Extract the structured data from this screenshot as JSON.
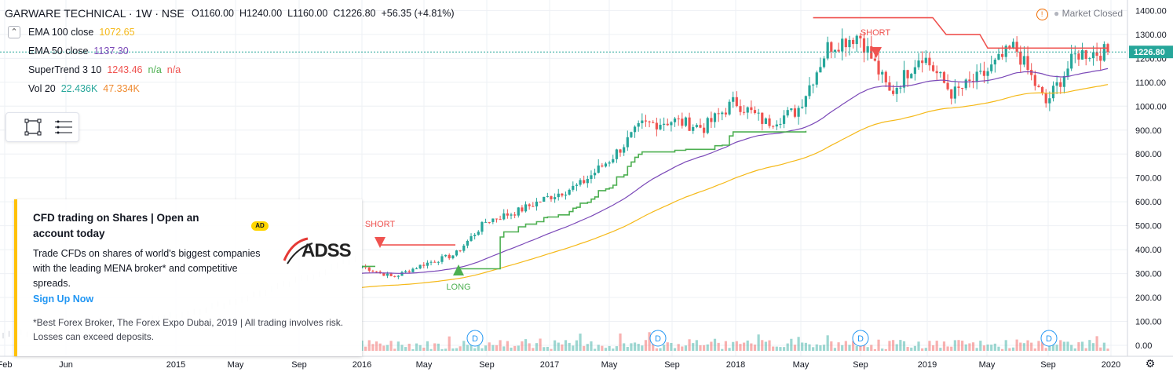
{
  "header": {
    "symbol_title": "GARWARE TECHNICAL · 1W · NSE",
    "ohlc": {
      "o": "O1160.00",
      "h": "H1240.00",
      "l": "L1160.00",
      "c": "C1226.80",
      "chg": "+56.35 (+4.81%)"
    },
    "market_status": "Market Closed"
  },
  "indicators": [
    {
      "name": "EMA 100 close",
      "value": "1072.65",
      "color": "#f5b919"
    },
    {
      "name": "EMA 50 close",
      "value": "1137.30",
      "color": "#7b49b8"
    },
    {
      "name": "SuperTrend 3 10",
      "value": "1243.46",
      "value2": "n/a",
      "value3": "n/a",
      "color": "#ef5350",
      "color2": "#4caf50"
    },
    {
      "name": "Vol 20",
      "value": "22.436K",
      "value2": "47.334K",
      "color": "#26a69a",
      "color2": "#ef8a2f"
    }
  ],
  "colors": {
    "up": "#26a69a",
    "down": "#ef5350",
    "st_up": "#4caf50",
    "st_down": "#ef5350",
    "ema50": "#7b49b8",
    "ema100": "#f5b919",
    "grid": "#eef0f4",
    "axis_text": "#131722"
  },
  "price_axis": {
    "labels": [
      "1400.00",
      "1300.00",
      "1200.00",
      "1100.00",
      "1000.00",
      "900.00",
      "800.00",
      "700.00",
      "600.00",
      "500.00",
      "400.00",
      "300.00",
      "200.00",
      "100.00",
      "0.00"
    ],
    "last_price": "1226.80"
  },
  "time_axis": {
    "labels": [
      "Feb",
      "Jun",
      "2015",
      "May",
      "Sep",
      "2016",
      "May",
      "Sep",
      "2017",
      "May",
      "Sep",
      "2018",
      "May",
      "Sep",
      "2019",
      "May",
      "Sep",
      "2020"
    ]
  },
  "markers": {
    "short1": "SHORT",
    "long1": "LONG",
    "short2": "SHORT",
    "dividend": "D"
  },
  "ad": {
    "title": "CFD trading on Shares | Open an account today",
    "badge": "AD",
    "body": "Trade CFDs on shares of world's biggest companies with the leading MENA broker* and competitive spreads.",
    "cta": "Sign Up Now",
    "note": "*Best Forex Broker, The Forex Expo Dubai, 2019 | All trading involves risk. Losses can exceed deposits.",
    "logo_text": "ADSS"
  },
  "chart_data": {
    "type": "candlestick",
    "title": "GARWARE TECHNICAL · 1W · NSE",
    "ylim": [
      0,
      1400
    ],
    "x_ticks": [
      "Feb",
      "Jun",
      "2015",
      "May",
      "Sep",
      "2016",
      "May",
      "Sep",
      "2017",
      "May",
      "Sep",
      "2018",
      "May",
      "Sep",
      "2019",
      "May",
      "Sep",
      "2020"
    ],
    "last_price": 1226.8,
    "price_path_weekly_approx": [
      {
        "period": "2016-01",
        "close": 330
      },
      {
        "period": "2016-03",
        "close": 285
      },
      {
        "period": "2016-06",
        "close": 340
      },
      {
        "period": "2016-07",
        "close": 380
      },
      {
        "period": "2016-09",
        "close": 520
      },
      {
        "period": "2016-11",
        "close": 560
      },
      {
        "period": "2017-01",
        "close": 620
      },
      {
        "period": "2017-03",
        "close": 670
      },
      {
        "period": "2017-05",
        "close": 780
      },
      {
        "period": "2017-07",
        "close": 920
      },
      {
        "period": "2017-09",
        "close": 940
      },
      {
        "period": "2017-11",
        "close": 910
      },
      {
        "period": "2018-01",
        "close": 1020
      },
      {
        "period": "2018-03",
        "close": 930
      },
      {
        "period": "2018-05",
        "close": 980
      },
      {
        "period": "2018-07",
        "close": 1250
      },
      {
        "period": "2018-09",
        "close": 1300
      },
      {
        "period": "2018-10",
        "close": 1050
      },
      {
        "period": "2018-12",
        "close": 1220
      },
      {
        "period": "2019-02",
        "close": 1050
      },
      {
        "period": "2019-04",
        "close": 1130
      },
      {
        "period": "2019-06",
        "close": 1250
      },
      {
        "period": "2019-08",
        "close": 1010
      },
      {
        "period": "2019-10",
        "close": 1220
      },
      {
        "period": "2019-12",
        "close": 1226.8
      }
    ],
    "series": [
      {
        "name": "EMA 100 close",
        "last": 1072.65
      },
      {
        "name": "EMA 50 close",
        "last": 1137.3
      },
      {
        "name": "SuperTrend 3 10",
        "last": 1243.46
      },
      {
        "name": "Vol 20",
        "last": 22.436
      }
    ]
  }
}
